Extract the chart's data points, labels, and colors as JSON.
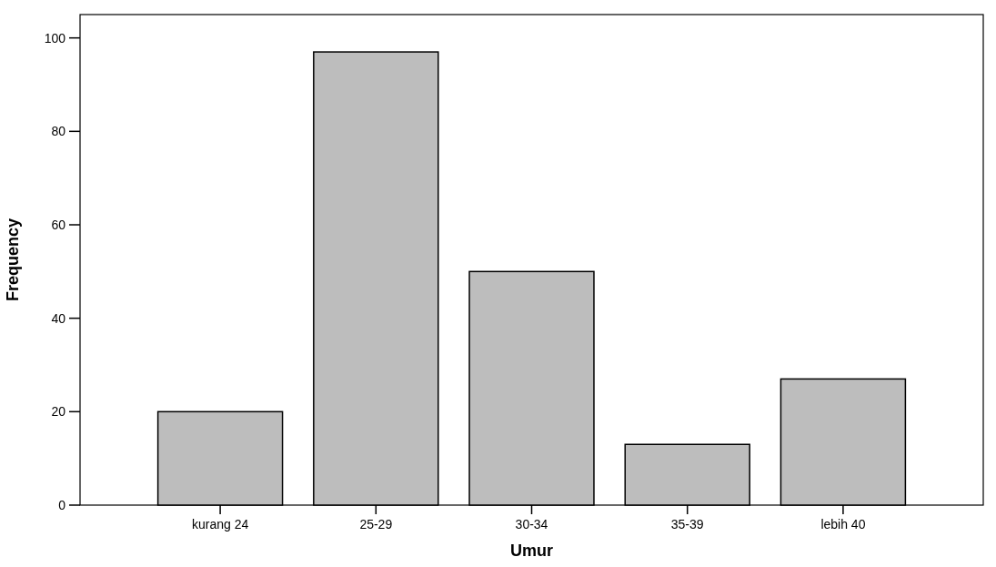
{
  "chart_data": {
    "type": "bar",
    "xlabel": "Umur",
    "ylabel": "Frequency",
    "categories": [
      "kurang 24",
      "25-29",
      "30-34",
      "35-39",
      "lebih 40"
    ],
    "values": [
      20,
      97,
      50,
      13,
      27
    ],
    "color": "#bdbdbd",
    "ylim": [
      0,
      105
    ],
    "yticks": [
      0,
      20,
      40,
      60,
      80,
      100
    ],
    "grid": false
  }
}
